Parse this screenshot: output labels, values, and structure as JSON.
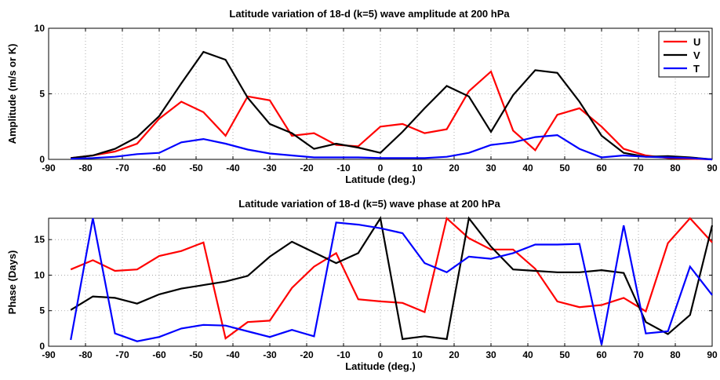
{
  "chart_data": [
    {
      "type": "line",
      "title": "Latitude variation of 18-d (k=5) wave amplitude at 200 hPa",
      "xlabel": "Latitude (deg.)",
      "ylabel": "Amplitude (m/s or K)",
      "xlim": [
        -90,
        90
      ],
      "ylim": [
        0,
        10
      ],
      "xticks": [
        -90,
        -80,
        -70,
        -60,
        -50,
        -40,
        -30,
        -20,
        -10,
        0,
        10,
        20,
        30,
        40,
        50,
        60,
        70,
        80,
        90
      ],
      "yticks": [
        0,
        5,
        10
      ],
      "grid": true,
      "legend": "top-right",
      "x": [
        -84,
        -78,
        -72,
        -66,
        -60,
        -54,
        -48,
        -42,
        -36,
        -30,
        -24,
        -18,
        -12,
        -6,
        0,
        6,
        12,
        18,
        24,
        30,
        36,
        42,
        48,
        54,
        60,
        66,
        72,
        78,
        84,
        90
      ],
      "series": [
        {
          "name": "U",
          "color": "#ff0000",
          "values": [
            0.1,
            0.3,
            0.6,
            1.2,
            3.1,
            4.4,
            3.6,
            1.8,
            4.8,
            4.5,
            1.8,
            2.0,
            1.1,
            1.0,
            2.5,
            2.7,
            2.0,
            2.3,
            5.2,
            6.7,
            2.2,
            0.7,
            3.4,
            3.9,
            2.5,
            0.8,
            0.3,
            0.1,
            0.05,
            0.0
          ]
        },
        {
          "name": "V",
          "color": "#000000",
          "values": [
            0.1,
            0.3,
            0.8,
            1.7,
            3.3,
            5.8,
            8.2,
            7.6,
            4.7,
            2.7,
            2.0,
            0.8,
            1.2,
            0.9,
            0.5,
            2.1,
            3.9,
            5.6,
            4.8,
            2.1,
            4.9,
            6.8,
            6.6,
            4.4,
            1.8,
            0.5,
            0.2,
            0.25,
            0.15,
            0.0
          ]
        },
        {
          "name": "T",
          "color": "#0000ff",
          "values": [
            0.05,
            0.1,
            0.2,
            0.4,
            0.5,
            1.3,
            1.55,
            1.2,
            0.75,
            0.45,
            0.3,
            0.15,
            0.15,
            0.15,
            0.1,
            0.1,
            0.1,
            0.2,
            0.5,
            1.1,
            1.3,
            1.7,
            1.85,
            0.8,
            0.15,
            0.3,
            0.2,
            0.15,
            0.1,
            0.0
          ]
        }
      ]
    },
    {
      "type": "line",
      "title": "Latitude variation of 18-d (k=5) wave phase at 200 hPa",
      "xlabel": "Latitude (deg.)",
      "ylabel": "Phase (Days)",
      "xlim": [
        -90,
        90
      ],
      "ylim": [
        0,
        18
      ],
      "xticks": [
        -90,
        -80,
        -70,
        -60,
        -50,
        -40,
        -30,
        -20,
        -10,
        0,
        10,
        20,
        30,
        40,
        50,
        60,
        70,
        80,
        90
      ],
      "yticks": [
        0,
        5,
        10,
        15
      ],
      "grid": true,
      "x": [
        -84,
        -78,
        -72,
        -66,
        -60,
        -54,
        -48,
        -42,
        -36,
        -30,
        -24,
        -18,
        -12,
        -6,
        0,
        6,
        12,
        18,
        24,
        30,
        36,
        42,
        48,
        54,
        60,
        66,
        72,
        78,
        84,
        90
      ],
      "series": [
        {
          "name": "U",
          "color": "#ff0000",
          "values": [
            10.8,
            12.1,
            10.6,
            10.8,
            12.7,
            13.4,
            14.6,
            1.1,
            3.4,
            3.6,
            8.2,
            11.2,
            13.1,
            6.6,
            6.3,
            6.1,
            4.8,
            18.0,
            15.2,
            13.6,
            13.6,
            10.9,
            6.3,
            5.5,
            5.8,
            6.8,
            4.9,
            14.5,
            18.0,
            14.6
          ]
        },
        {
          "name": "V",
          "color": "#000000",
          "values": [
            5.1,
            7.0,
            6.8,
            6.0,
            7.3,
            8.1,
            8.6,
            9.1,
            9.9,
            12.6,
            14.7,
            13.2,
            11.7,
            13.1,
            18.0,
            1.0,
            1.4,
            1.0,
            18.0,
            14.0,
            10.8,
            10.6,
            10.4,
            10.4,
            10.7,
            10.3,
            3.4,
            1.7,
            4.4,
            17.0
          ]
        },
        {
          "name": "T",
          "color": "#0000ff",
          "values": [
            0.9,
            18.0,
            1.8,
            0.7,
            1.3,
            2.5,
            3.0,
            2.9,
            2.1,
            1.3,
            2.3,
            1.4,
            17.4,
            17.1,
            16.6,
            15.9,
            11.7,
            10.4,
            12.6,
            12.3,
            13.1,
            14.3,
            14.3,
            14.4,
            0.2,
            17.0,
            1.8,
            2.1,
            11.2,
            7.2
          ]
        }
      ]
    }
  ]
}
